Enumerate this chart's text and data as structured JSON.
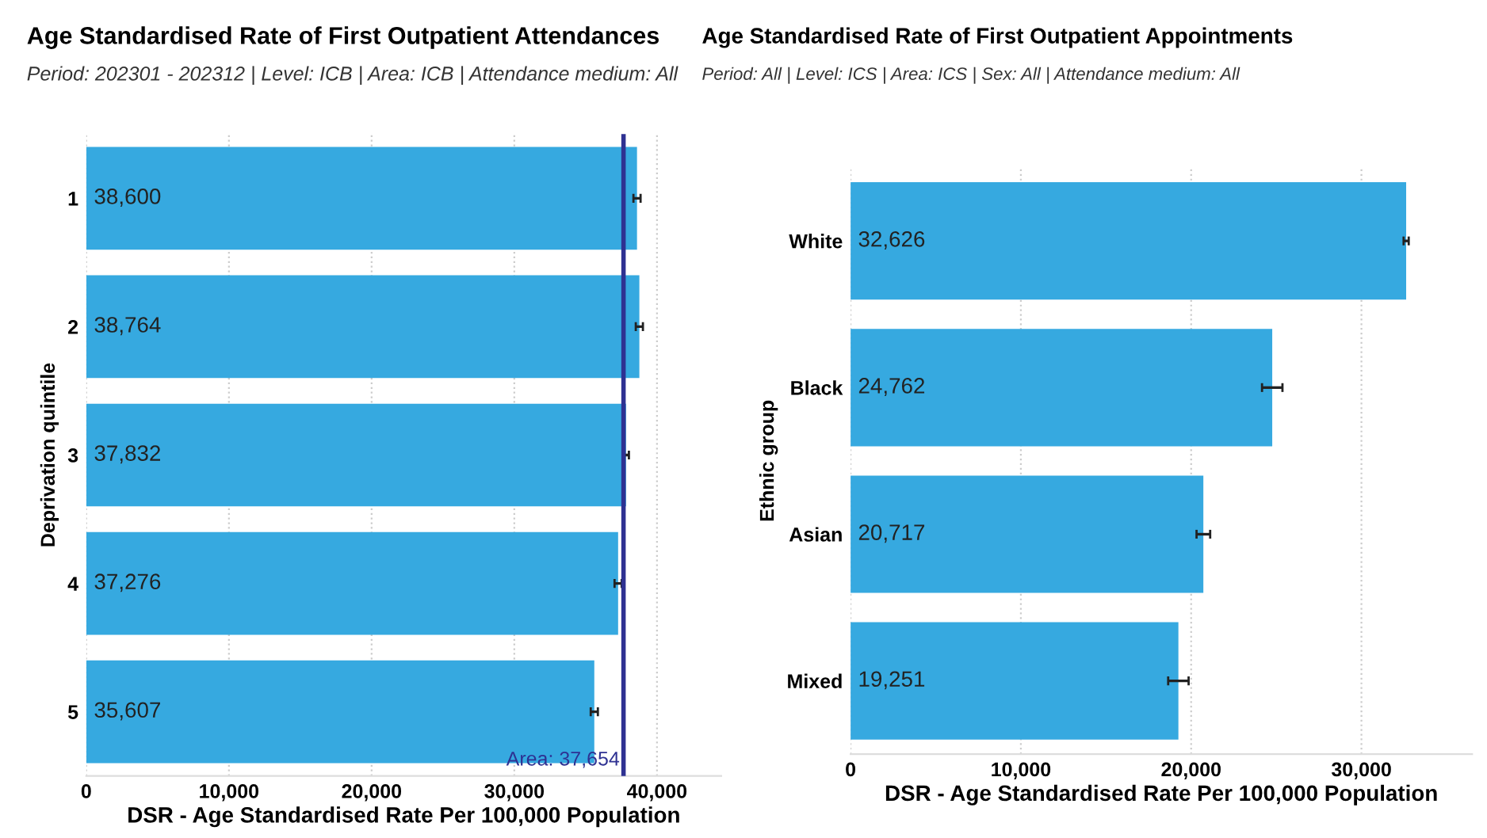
{
  "chart_data": [
    {
      "type": "bar",
      "orientation": "horizontal",
      "title": "Age Standardised Rate of First Outpatient Attendances",
      "subtitle": "Period: 202301 - 202312 | Level: ICB | Area: ICB | Attendance medium: All",
      "xlabel": "DSR - Age Standardised Rate Per 100,000 Population",
      "ylabel": "Deprivation quintile",
      "categories": [
        "1",
        "2",
        "3",
        "4",
        "5"
      ],
      "values": [
        38600,
        38764,
        37832,
        37276,
        35607
      ],
      "value_labels": [
        "38,600",
        "38,764",
        "37,832",
        "37,276",
        "35,607"
      ],
      "errors": [
        250,
        250,
        200,
        250,
        250
      ],
      "color": "#36a9e0",
      "xlim": [
        0,
        44500
      ],
      "xticks": [
        {
          "value": 0,
          "label": "0"
        },
        {
          "value": 10000,
          "label": "10,000"
        },
        {
          "value": 20000,
          "label": "20,000"
        },
        {
          "value": 30000,
          "label": "30,000"
        },
        {
          "value": 40000,
          "label": "40,000"
        }
      ],
      "ref_lines": [
        {
          "axis": "x",
          "value": 37654,
          "label": "Area: 37,654",
          "color": "#2e3192"
        }
      ],
      "grid": "x"
    },
    {
      "type": "bar",
      "orientation": "horizontal",
      "title": "Age Standardised Rate of First Outpatient Appointments",
      "subtitle": "Period: All | Level: ICS | Area: ICS | Sex: All | Attendance medium: All",
      "xlabel": "DSR - Age Standardised Rate Per 100,000 Population",
      "ylabel": "Ethnic group",
      "categories": [
        "White",
        "Black",
        "Asian",
        "Mixed"
      ],
      "values": [
        32626,
        24762,
        20717,
        19251
      ],
      "value_labels": [
        "32,626",
        "24,762",
        "20,717",
        "19,251"
      ],
      "errors": [
        150,
        600,
        400,
        600
      ],
      "color": "#36a9e0",
      "xlim": [
        0,
        36500
      ],
      "xticks": [
        {
          "value": 0,
          "label": "0"
        },
        {
          "value": 10000,
          "label": "10,000"
        },
        {
          "value": 20000,
          "label": "20,000"
        },
        {
          "value": 30000,
          "label": "30,000"
        }
      ],
      "grid": "x"
    }
  ]
}
